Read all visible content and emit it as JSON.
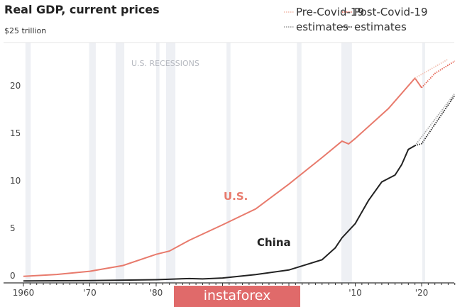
{
  "chart_data": {
    "type": "line",
    "title": "Real GDP, current prices",
    "y_unit_label": "$25 trillion",
    "xlim": [
      1960,
      2025
    ],
    "ylim": [
      0,
      25
    ],
    "x_ticks": [
      {
        "v": 1960,
        "label": "1960"
      },
      {
        "v": 1970,
        "label": "'70"
      },
      {
        "v": 1980,
        "label": "'80"
      },
      {
        "v": 2010,
        "label": "'10"
      },
      {
        "v": 2020,
        "label": "'20"
      }
    ],
    "y_ticks": [
      {
        "v": 0,
        "label": "0"
      },
      {
        "v": 5,
        "label": "5"
      },
      {
        "v": 10,
        "label": "10"
      },
      {
        "v": 15,
        "label": "15"
      },
      {
        "v": 20,
        "label": "20"
      }
    ],
    "recessions_label": "U.S. RECESSIONS",
    "recessions": [
      [
        1960.3,
        1961.1
      ],
      [
        1969.9,
        1970.9
      ],
      [
        1973.9,
        1975.2
      ],
      [
        1980.0,
        1980.5
      ],
      [
        1981.5,
        1982.9
      ],
      [
        1990.6,
        1991.2
      ],
      [
        2001.2,
        2001.9
      ],
      [
        2007.9,
        2009.5
      ],
      [
        2020.1,
        2020.4
      ]
    ],
    "legend": [
      {
        "label": "Pre-Covid-19 estimates",
        "color": "#f3c3b5",
        "style": "dotted"
      },
      {
        "label": "Post-Covid-19 estimates",
        "color": "#e4604f",
        "style": "dotted"
      },
      {
        "label": "Pre-Covid-19 estimates",
        "color": "#a8a8a8",
        "style": "dotted"
      },
      {
        "label": "Post-Covid-19 estimates",
        "color": "#222222",
        "style": "dotted"
      }
    ],
    "legend_rows": [
      {
        "a": "Pre-Covid-19",
        "b": "Post-Covid-19"
      },
      {
        "a": "estimates",
        "b": "estimates"
      }
    ],
    "series": [
      {
        "name": "U.S.",
        "color": "#e87a6c",
        "x": [
          1960,
          1965,
          1970,
          1975,
          1980,
          1982,
          1985,
          1990,
          1995,
          2000,
          2005,
          2008,
          2009,
          2010,
          2015,
          2019,
          2020
        ],
        "values": [
          0.54,
          0.74,
          1.07,
          1.68,
          2.86,
          3.2,
          4.34,
          5.96,
          7.64,
          10.25,
          13.04,
          14.77,
          14.48,
          15.05,
          18.2,
          21.4,
          20.4
        ]
      },
      {
        "name": "China",
        "color": "#222222",
        "x": [
          1960,
          1970,
          1980,
          1985,
          1987,
          1990,
          1995,
          2000,
          2005,
          2007,
          2008,
          2010,
          2012,
          2014,
          2016,
          2017,
          2018,
          2019
        ],
        "values": [
          0.06,
          0.09,
          0.19,
          0.31,
          0.27,
          0.36,
          0.73,
          1.21,
          2.29,
          3.55,
          4.59,
          6.09,
          8.53,
          10.48,
          11.2,
          12.3,
          13.9,
          14.3
        ]
      },
      {
        "name": "U.S. Pre-Covid-19 estimates",
        "color": "#f3c3b5",
        "x": [
          2019,
          2024
        ],
        "values": [
          21.4,
          23.4
        ]
      },
      {
        "name": "U.S. Post-Covid-19 estimates",
        "color": "#e4604f",
        "x": [
          2020,
          2022,
          2025
        ],
        "values": [
          20.4,
          21.9,
          23.2
        ]
      },
      {
        "name": "China Pre-Covid-19 estimates",
        "color": "#a8a8a8",
        "x": [
          2019,
          2025
        ],
        "values": [
          14.3,
          19.8
        ]
      },
      {
        "name": "China Post-Covid-19 estimates",
        "color": "#222222",
        "x": [
          2019,
          2020,
          2025
        ],
        "values": [
          14.3,
          14.5,
          19.6
        ]
      }
    ],
    "series_labels": [
      {
        "text": "U.S.",
        "color": "#e87a6c"
      },
      {
        "text": "China",
        "color": "#222222"
      }
    ],
    "grid": false
  },
  "watermark": "instaforex"
}
